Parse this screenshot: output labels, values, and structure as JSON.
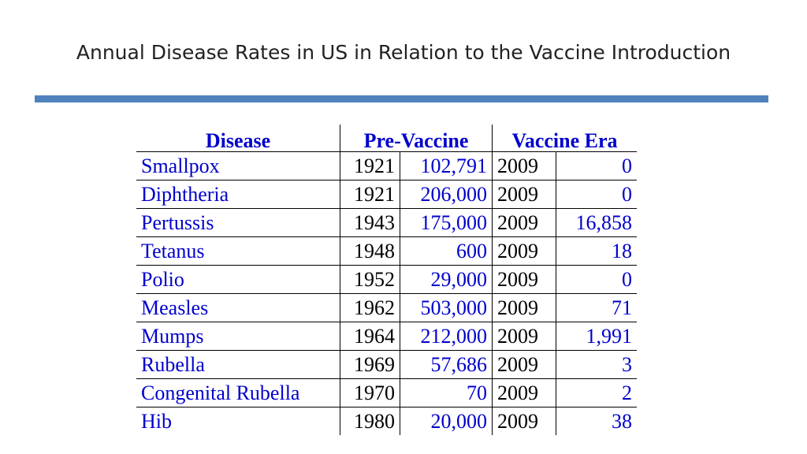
{
  "title": "Annual Disease Rates in US in Relation to the Vaccine Introduction",
  "table": {
    "headers": {
      "disease": "Disease",
      "pre_vaccine": "Pre-Vaccine",
      "vaccine_era": "Vaccine Era"
    },
    "rows": [
      {
        "disease": "Smallpox",
        "pre_year": "1921",
        "pre_cases": "102,791",
        "era_year": "2009",
        "era_cases": "0"
      },
      {
        "disease": "Diphtheria",
        "pre_year": "1921",
        "pre_cases": "206,000",
        "era_year": "2009",
        "era_cases": "0"
      },
      {
        "disease": "Pertussis",
        "pre_year": "1943",
        "pre_cases": "175,000",
        "era_year": "2009",
        "era_cases": "16,858"
      },
      {
        "disease": "Tetanus",
        "pre_year": "1948",
        "pre_cases": "600",
        "era_year": "2009",
        "era_cases": "18"
      },
      {
        "disease": "Polio",
        "pre_year": "1952",
        "pre_cases": "29,000",
        "era_year": "2009",
        "era_cases": "0"
      },
      {
        "disease": "Measles",
        "pre_year": "1962",
        "pre_cases": "503,000",
        "era_year": "2009",
        "era_cases": "71"
      },
      {
        "disease": "Mumps",
        "pre_year": "1964",
        "pre_cases": "212,000",
        "era_year": "2009",
        "era_cases": "1,991"
      },
      {
        "disease": "Rubella",
        "pre_year": "1969",
        "pre_cases": "57,686",
        "era_year": "2009",
        "era_cases": "3"
      },
      {
        "disease": "Congenital Rubella",
        "pre_year": "1970",
        "pre_cases": "70",
        "era_year": "2009",
        "era_cases": "2"
      },
      {
        "disease": "Hib",
        "pre_year": "1980",
        "pre_cases": "20,000",
        "era_year": "2009",
        "era_cases": "38"
      }
    ]
  }
}
